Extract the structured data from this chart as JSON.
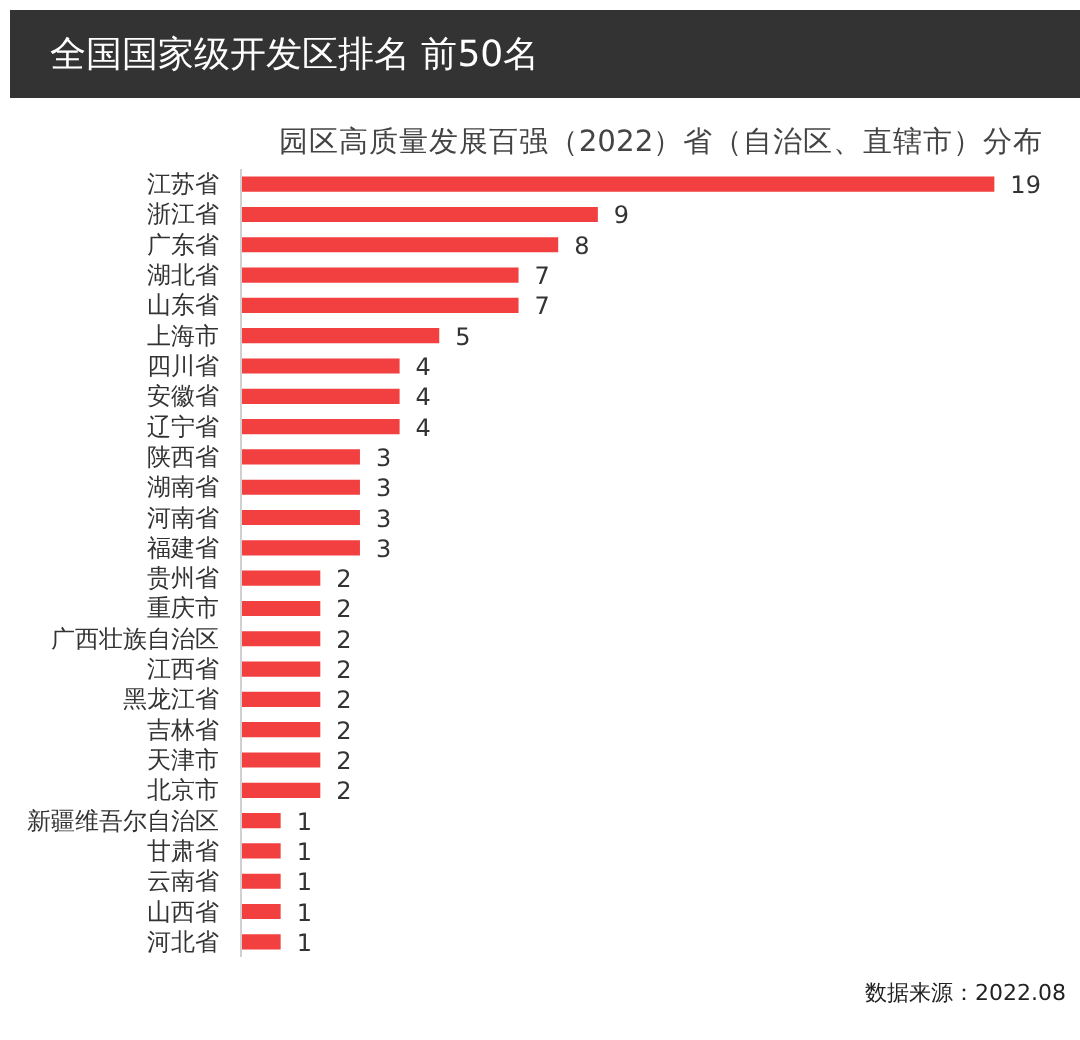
{
  "chart_data": {
    "type": "bar",
    "orientation": "horizontal",
    "title": "园区高质量发展百强（2022）省（自治区、直辖市）分布",
    "categories": [
      "江苏省",
      "浙江省",
      "广东省",
      "湖北省",
      "山东省",
      "上海市",
      "四川省",
      "安徽省",
      "辽宁省",
      "陕西省",
      "湖南省",
      "河南省",
      "福建省",
      "贵州省",
      "重庆市",
      "广西壮族自治区",
      "江西省",
      "黑龙江省",
      "吉林省",
      "天津市",
      "北京市",
      "新疆维吾尔自治区",
      "甘肃省",
      "云南省",
      "山西省",
      "河北省"
    ],
    "values": [
      19,
      9,
      8,
      7,
      7,
      5,
      4,
      4,
      4,
      3,
      3,
      3,
      3,
      2,
      2,
      2,
      2,
      2,
      2,
      2,
      2,
      1,
      1,
      1,
      1,
      1
    ],
    "color": "#f23f3f",
    "data_labels": true,
    "annotations": [
      "全国国家级开发区排名  前50名",
      "数据来源：2022.08"
    ]
  }
}
